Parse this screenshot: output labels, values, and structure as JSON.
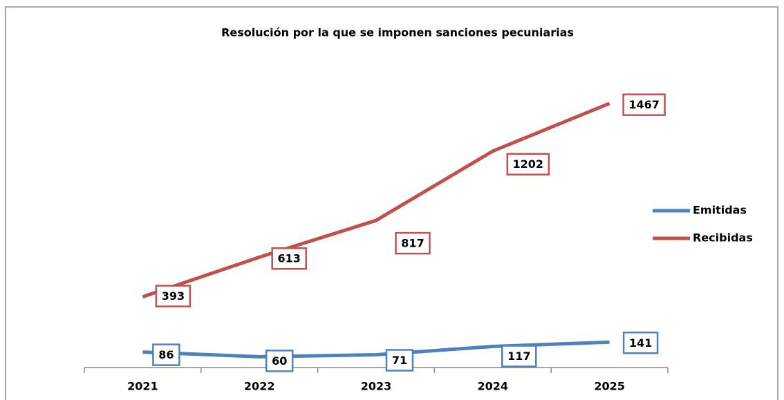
{
  "chart_data": {
    "type": "line",
    "title": "Resolución por la que se imponen sanciones pecuniarias",
    "categories": [
      "2021",
      "2022",
      "2023",
      "2024",
      "2025"
    ],
    "series": [
      {
        "name": "Emitidas",
        "color": "#4f81bd",
        "values": [
          86,
          60,
          71,
          117,
          141
        ]
      },
      {
        "name": "Recibidas",
        "color": "#c0504d",
        "values": [
          393,
          613,
          817,
          1202,
          1467
        ]
      }
    ],
    "ylim": [
      0,
      1600
    ],
    "legend": "right"
  }
}
